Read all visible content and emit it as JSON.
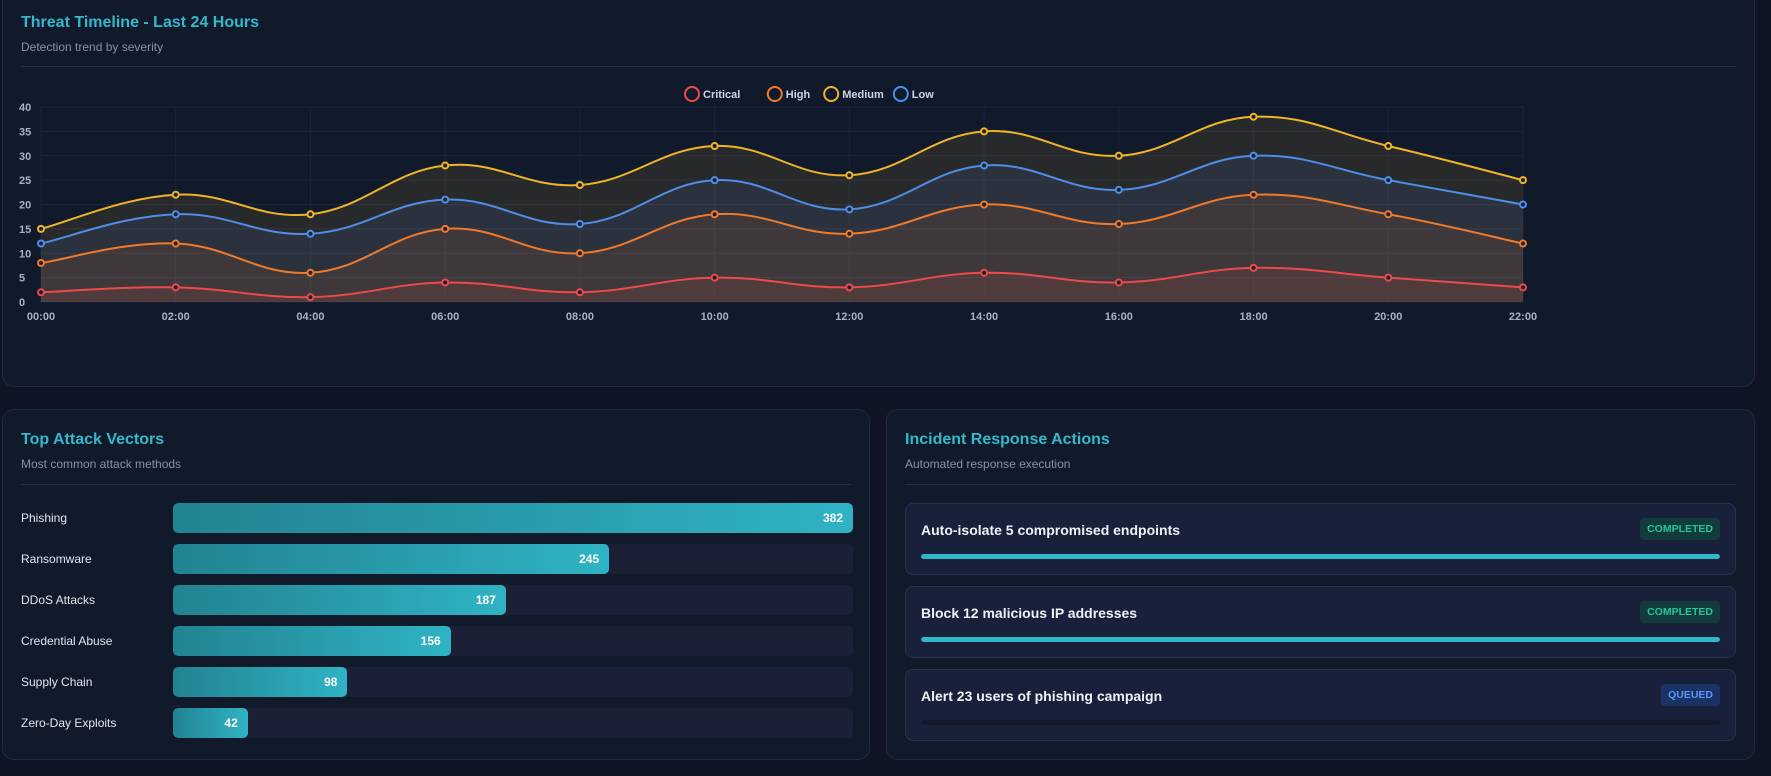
{
  "timeline": {
    "title": "Threat Timeline - Last 24 Hours",
    "subtitle": "Detection trend by severity"
  },
  "chart_data": {
    "type": "area",
    "x": [
      "00:00",
      "02:00",
      "04:00",
      "06:00",
      "08:00",
      "10:00",
      "12:00",
      "14:00",
      "16:00",
      "18:00",
      "20:00",
      "22:00"
    ],
    "ylim": [
      0,
      40
    ],
    "yticks": [
      0,
      5,
      10,
      15,
      20,
      25,
      30,
      35,
      40
    ],
    "grid": true,
    "legend": "top-center",
    "series": [
      {
        "name": "Medium",
        "color": "#f0b429",
        "values": [
          15,
          22,
          18,
          28,
          24,
          32,
          26,
          35,
          30,
          38,
          32,
          25
        ]
      },
      {
        "name": "Low",
        "color": "#4f8ee8",
        "values": [
          12,
          18,
          14,
          21,
          16,
          25,
          19,
          28,
          23,
          30,
          25,
          20
        ]
      },
      {
        "name": "High",
        "color": "#f07a2a",
        "values": [
          8,
          12,
          6,
          15,
          10,
          18,
          14,
          20,
          16,
          22,
          18,
          12
        ]
      },
      {
        "name": "Critical",
        "color": "#ee4a4a",
        "values": [
          2,
          3,
          1,
          4,
          2,
          5,
          3,
          6,
          4,
          7,
          5,
          3
        ]
      }
    ],
    "legend_order": [
      "Critical",
      "High",
      "Medium",
      "Low"
    ]
  },
  "vectors": {
    "title": "Top Attack Vectors",
    "subtitle": "Most common attack methods",
    "max": 382,
    "items": [
      {
        "label": "Phishing",
        "value": "382"
      },
      {
        "label": "Ransomware",
        "value": "245"
      },
      {
        "label": "DDoS Attacks",
        "value": "187"
      },
      {
        "label": "Credential Abuse",
        "value": "156"
      },
      {
        "label": "Supply Chain",
        "value": "98"
      },
      {
        "label": "Zero-Day Exploits",
        "value": "42"
      }
    ]
  },
  "response": {
    "title": "Incident Response Actions",
    "subtitle": "Automated response execution",
    "actions": [
      {
        "title": "Auto-isolate 5 compromised endpoints",
        "status": "COMPLETED",
        "progress": 100
      },
      {
        "title": "Block 12 malicious IP addresses",
        "status": "COMPLETED",
        "progress": 100
      },
      {
        "title": "Alert 23 users of phishing campaign",
        "status": "QUEUED",
        "progress": 0
      }
    ]
  }
}
